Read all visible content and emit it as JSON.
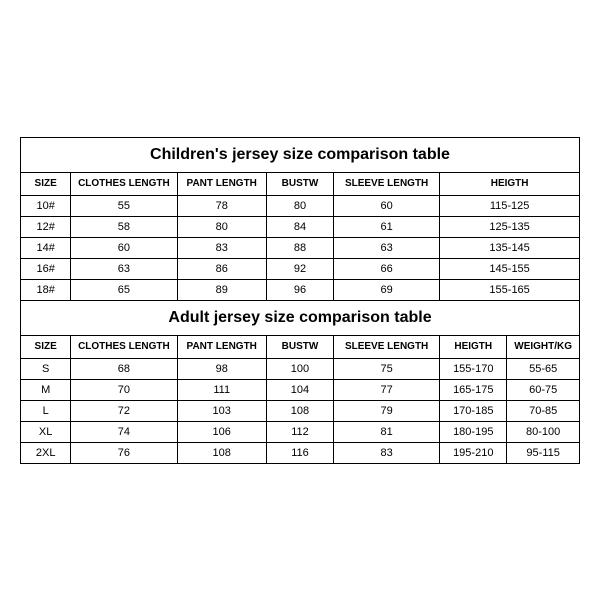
{
  "children": {
    "title": "Children's jersey size comparison table",
    "columns": [
      "SIZE",
      "CLOTHES LENGTH",
      "PANT LENGTH",
      "BUSTW",
      "SLEEVE LENGTH",
      "HEIGTH"
    ],
    "rows": [
      [
        "10#",
        "55",
        "78",
        "80",
        "60",
        "115-125"
      ],
      [
        "12#",
        "58",
        "80",
        "84",
        "61",
        "125-135"
      ],
      [
        "14#",
        "60",
        "83",
        "88",
        "63",
        "135-145"
      ],
      [
        "16#",
        "63",
        "86",
        "92",
        "66",
        "145-155"
      ],
      [
        "18#",
        "65",
        "89",
        "96",
        "69",
        "155-165"
      ]
    ]
  },
  "adult": {
    "title": "Adult jersey size comparison table",
    "columns": [
      "SIZE",
      "CLOTHES LENGTH",
      "PANT LENGTH",
      "BUSTW",
      "SLEEVE LENGTH",
      "HEIGTH",
      "WEIGHT/KG"
    ],
    "rows": [
      [
        "S",
        "68",
        "98",
        "100",
        "75",
        "155-170",
        "55-65"
      ],
      [
        "M",
        "70",
        "111",
        "104",
        "77",
        "165-175",
        "60-75"
      ],
      [
        "L",
        "72",
        "103",
        "108",
        "79",
        "170-185",
        "70-85"
      ],
      [
        "XL",
        "74",
        "106",
        "112",
        "81",
        "180-195",
        "80-100"
      ],
      [
        "2XL",
        "76",
        "108",
        "116",
        "83",
        "195-210",
        "95-115"
      ]
    ]
  },
  "style": {
    "background_color": "#ffffff",
    "border_color": "#000000",
    "title_fontsize": 16,
    "header_fontsize": 10,
    "cell_fontsize": 11,
    "font_family": "Arial"
  }
}
